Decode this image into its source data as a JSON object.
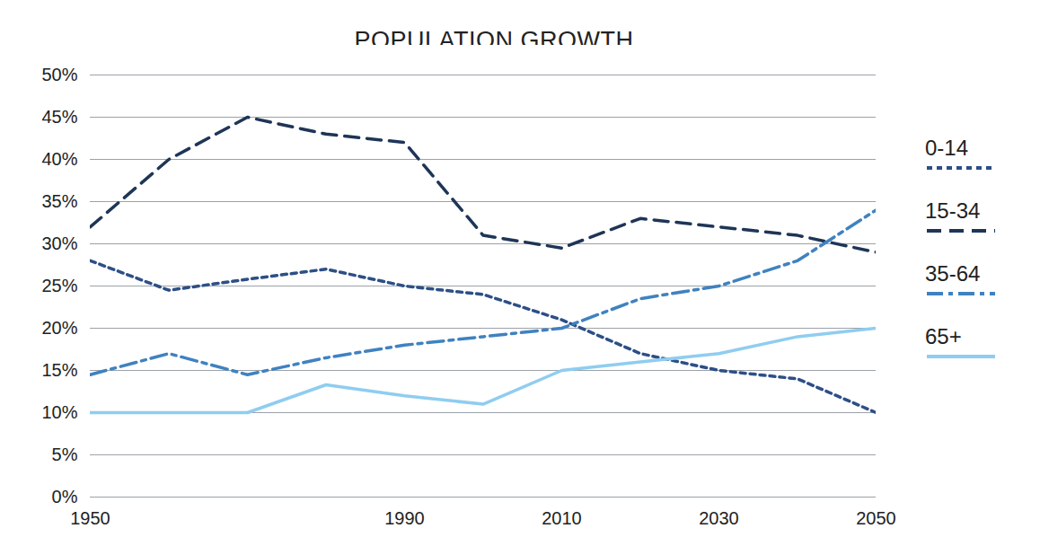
{
  "chart_data": {
    "type": "line",
    "title": "POPULATION GROWTH",
    "x": [
      1950,
      1960,
      1970,
      1980,
      1990,
      2000,
      2010,
      2020,
      2030,
      2040,
      2050
    ],
    "series": [
      {
        "name": "0-14",
        "color": "#2c4f86",
        "line_style": "dotted",
        "values": [
          28,
          24.5,
          25.8,
          27,
          25,
          24,
          21,
          17,
          15,
          14,
          10
        ]
      },
      {
        "name": "15-34",
        "color": "#1e3557",
        "line_style": "dashed",
        "values": [
          32,
          40,
          45,
          43,
          42,
          31,
          29.5,
          33,
          32,
          31,
          29
        ]
      },
      {
        "name": "35-64",
        "color": "#3f82c0",
        "line_style": "dashdot",
        "values": [
          14.5,
          17,
          14.5,
          16.5,
          18,
          19,
          20,
          23.5,
          25,
          28,
          34
        ]
      },
      {
        "name": "65+",
        "color": "#8fcdf0",
        "line_style": "solid",
        "values": [
          10,
          10,
          10,
          13.3,
          12,
          11,
          15,
          16,
          17,
          19,
          20
        ]
      }
    ],
    "xlim": [
      1950,
      2050
    ],
    "xticks": [
      1950,
      1990,
      2010,
      2030,
      2050
    ],
    "ylim": [
      0,
      50
    ],
    "yticks": [
      {
        "value": 0,
        "label": "0%"
      },
      {
        "value": 5,
        "label": "5%"
      },
      {
        "value": 10,
        "label": "10%"
      },
      {
        "value": 15,
        "label": "15%"
      },
      {
        "value": 20,
        "label": "20%"
      },
      {
        "value": 25,
        "label": "25%"
      },
      {
        "value": 30,
        "label": "30%"
      },
      {
        "value": 35,
        "label": "35%"
      },
      {
        "value": 40,
        "label": "40%"
      },
      {
        "value": 45,
        "label": "45%"
      },
      {
        "value": 50,
        "label": "50%"
      }
    ],
    "grid": true,
    "legend": "right"
  }
}
